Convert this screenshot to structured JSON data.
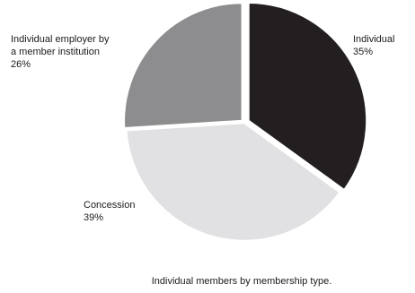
{
  "chart_data": {
    "type": "pie",
    "title": "",
    "caption": "Individual members by membership type.",
    "slices": [
      {
        "name": "Individual",
        "line1": "Individual",
        "line2": "35%",
        "value": 35,
        "color": "#231f20"
      },
      {
        "name": "Concession",
        "line1": "Concession",
        "line2": "39%",
        "value": 39,
        "color": "#e1e1e3"
      },
      {
        "name": "Individual employer by a member institution",
        "line1": "Individual employer by",
        "line1b": "a member institution",
        "line2": "26%",
        "value": 26,
        "color": "#8d8d8f"
      }
    ],
    "legend": "none"
  }
}
